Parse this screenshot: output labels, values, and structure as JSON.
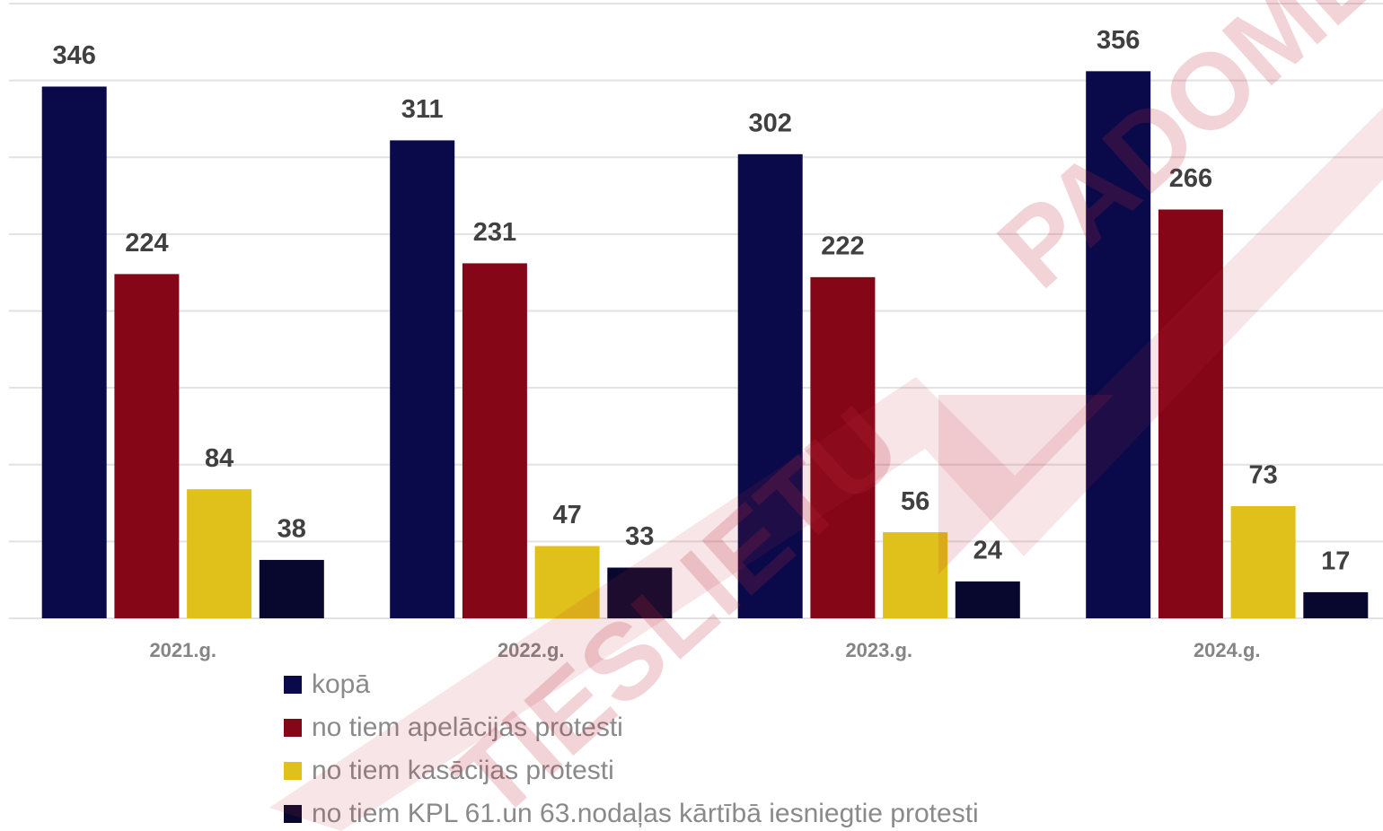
{
  "chart_data": {
    "type": "bar",
    "categories": [
      "2021.g.",
      "2022.g.",
      "2023.g.",
      "2024.g."
    ],
    "series": [
      {
        "name": "kopā",
        "color": "#0a0a4a",
        "values": [
          346,
          311,
          302,
          356
        ]
      },
      {
        "name": "no tiem apelācijas protesti",
        "color": "#850617",
        "values": [
          224,
          231,
          222,
          266
        ]
      },
      {
        "name": "no tiem kasācijas protesti",
        "color": "#e0c01a",
        "values": [
          84,
          47,
          56,
          73
        ]
      },
      {
        "name": "no tiem KPL 61.un 63.nodaļas kārtībā iesniegtie protesti",
        "color": "#08082e",
        "values": [
          38,
          33,
          24,
          17
        ]
      }
    ],
    "ylim": [
      0,
      400
    ],
    "yticks": [
      0,
      50,
      100,
      150,
      200,
      250,
      300,
      350,
      400
    ],
    "grid": true,
    "watermark": [
      "TIESLIETU",
      "PADOME"
    ]
  }
}
